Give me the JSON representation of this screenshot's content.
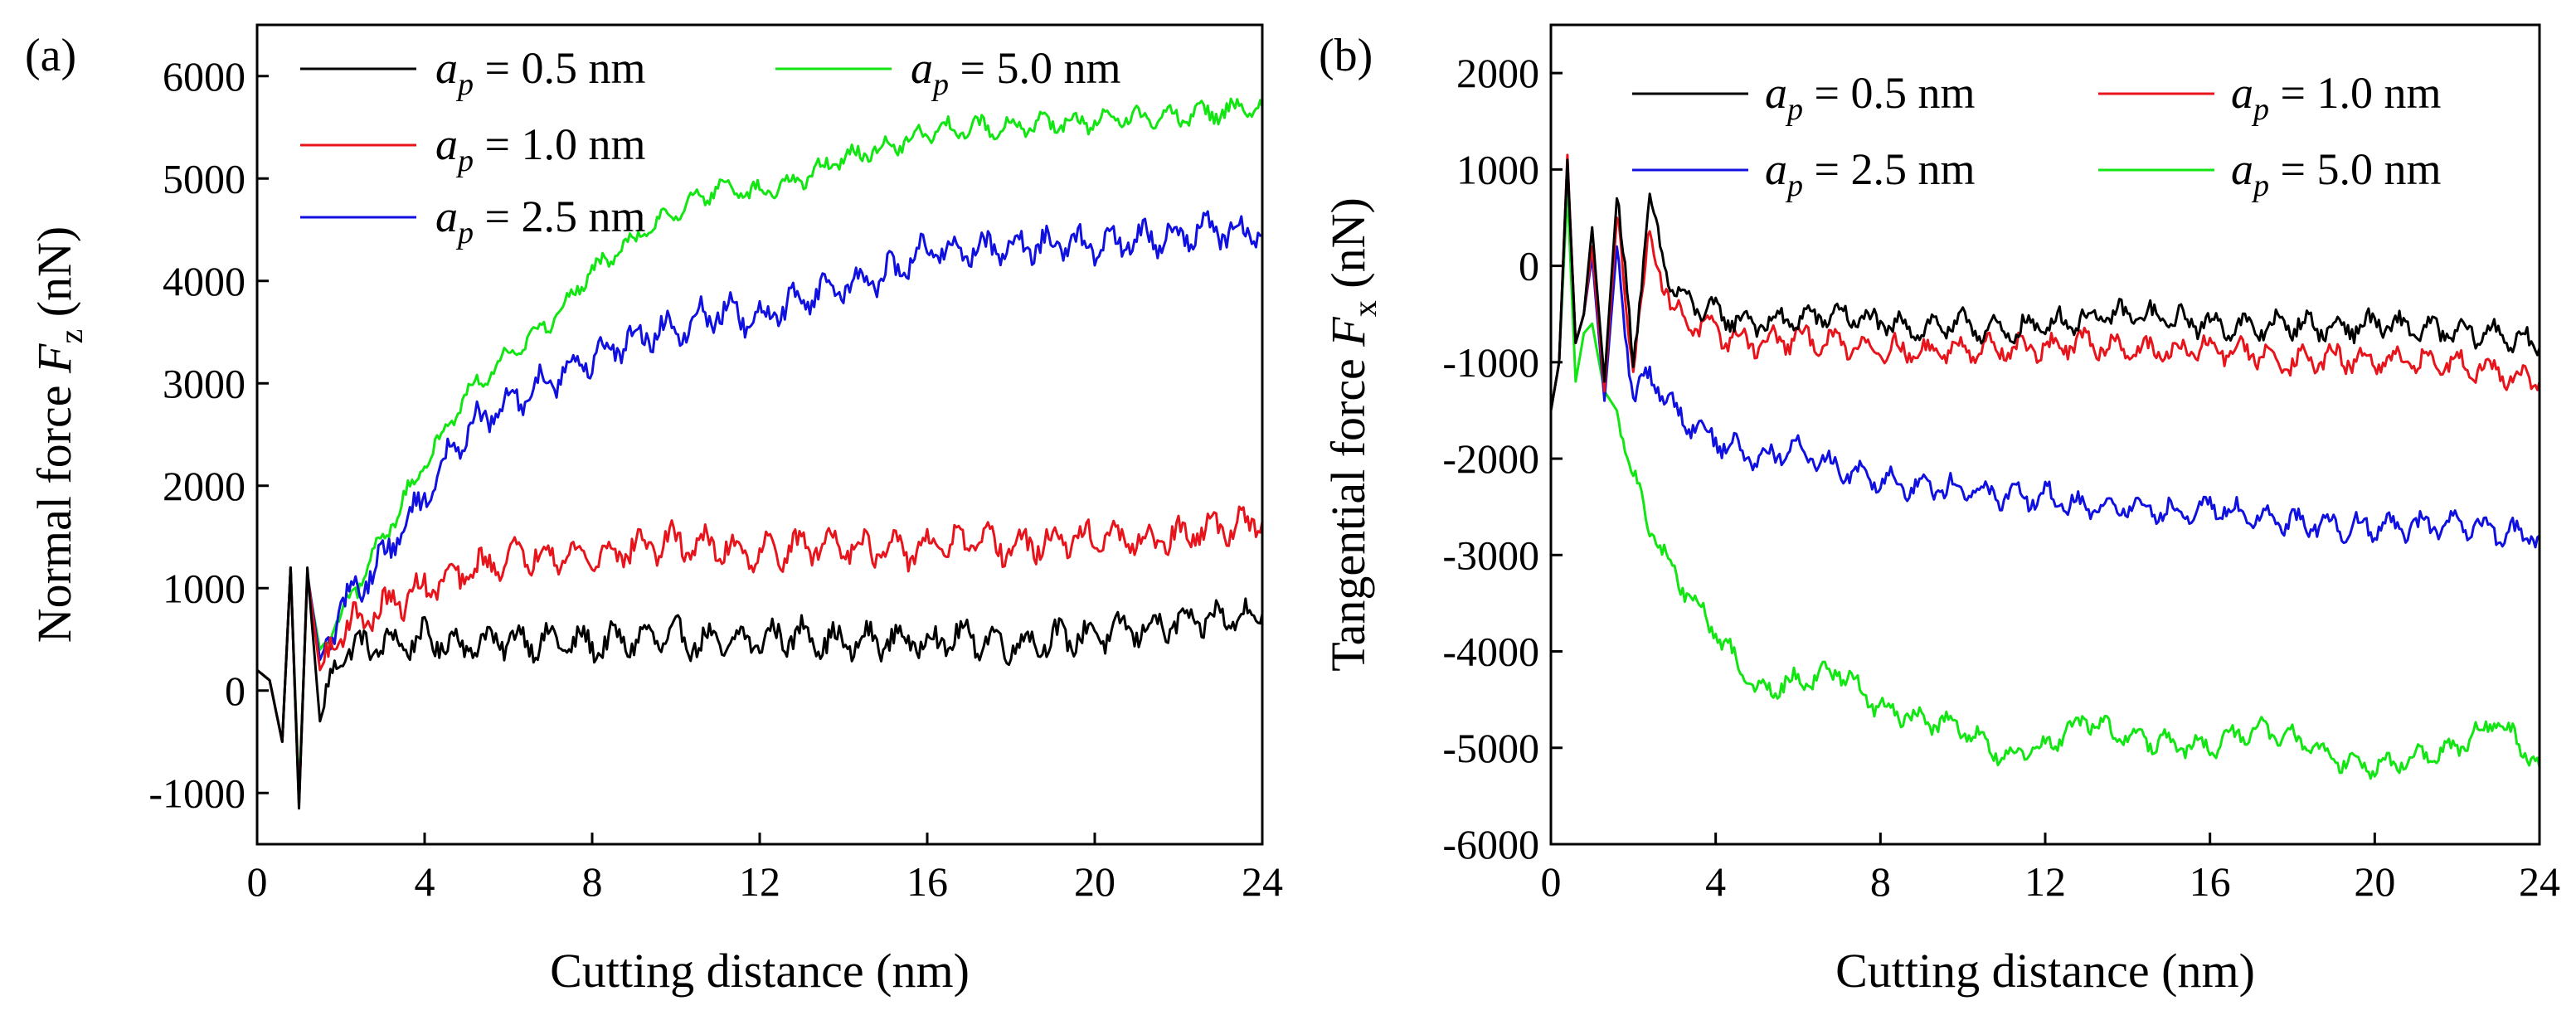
{
  "figure": {
    "panels": [
      {
        "label": "(a)",
        "xlabel": "Cutting distance (nm)",
        "ylabel_main": "Normal force ",
        "ylabel_sym": "F",
        "ylabel_sub": "z",
        "ylabel_unit": " (nN)"
      },
      {
        "label": "(b)",
        "xlabel": "Cutting distance (nm)",
        "ylabel_main": "Tangential force ",
        "ylabel_sym": "F",
        "ylabel_sub": "x",
        "ylabel_unit": " (nN)"
      }
    ],
    "legend_symbol": "a",
    "legend_sub": "p",
    "legend_values": [
      " = 0.5 nm",
      " = 1.0 nm",
      " = 2.5 nm",
      " = 5.0 nm"
    ],
    "colors": {
      "0.5": "#000000",
      "1.0": "#e8141c",
      "2.5": "#1010e0",
      "5.0": "#12e612"
    }
  },
  "chart_data": [
    {
      "type": "line",
      "title": "",
      "xlabel": "Cutting distance (nm)",
      "ylabel": "Normal force F_z (nN)",
      "xlim": [
        0,
        24
      ],
      "ylim": [
        -1500,
        6500
      ],
      "xticks": [
        "0",
        "4",
        "8",
        "12",
        "16",
        "20",
        "24"
      ],
      "yticks": [
        "-1000",
        "0",
        "1000",
        "2000",
        "3000",
        "4000",
        "5000",
        "6000"
      ],
      "legend": "top-left",
      "series": [
        {
          "name": "a_p = 0.5 nm",
          "color": "#000000",
          "x": [
            0,
            0.3,
            0.6,
            0.8,
            1.0,
            1.2,
            1.5,
            2,
            3,
            4,
            5,
            6,
            7,
            8,
            9,
            10,
            11,
            12,
            13,
            14,
            15,
            16,
            17,
            18,
            19,
            20,
            21,
            22,
            23,
            24
          ],
          "y": [
            200,
            100,
            -500,
            1200,
            -1150,
            1200,
            -300,
            400,
            450,
            500,
            450,
            500,
            480,
            450,
            500,
            520,
            450,
            500,
            550,
            450,
            500,
            480,
            520,
            450,
            500,
            550,
            600,
            650,
            700,
            750
          ]
        },
        {
          "name": "a_p = 1.0 nm",
          "color": "#e8141c",
          "x": [
            0,
            0.3,
            0.6,
            0.8,
            1.0,
            1.2,
            1.5,
            2,
            3,
            4,
            5,
            6,
            7,
            8,
            9,
            10,
            11,
            12,
            13,
            14,
            15,
            16,
            17,
            18,
            19,
            20,
            21,
            22,
            23,
            24
          ],
          "y": [
            200,
            100,
            -500,
            1200,
            -1100,
            1150,
            200,
            600,
            800,
            1000,
            1150,
            1300,
            1350,
            1300,
            1400,
            1450,
            1400,
            1350,
            1400,
            1450,
            1350,
            1400,
            1450,
            1400,
            1450,
            1500,
            1450,
            1500,
            1600,
            1650
          ]
        },
        {
          "name": "a_p = 2.5 nm",
          "color": "#1010e0",
          "x": [
            0,
            0.3,
            0.6,
            0.8,
            1.0,
            1.2,
            1.5,
            2,
            3,
            4,
            5,
            6,
            7,
            8,
            9,
            10,
            11,
            12,
            13,
            14,
            15,
            16,
            17,
            18,
            19,
            20,
            21,
            22,
            23,
            24
          ],
          "y": [
            200,
            100,
            -500,
            1200,
            -1100,
            1150,
            300,
            800,
            1300,
            1900,
            2550,
            2800,
            3050,
            3250,
            3450,
            3550,
            3700,
            3600,
            3850,
            3950,
            4050,
            4300,
            4300,
            4350,
            4350,
            4350,
            4400,
            4450,
            4500,
            4450
          ]
        },
        {
          "name": "a_p = 5.0 nm",
          "color": "#12e612",
          "x": [
            0,
            0.3,
            0.6,
            0.8,
            1.0,
            1.2,
            1.5,
            2,
            3,
            4,
            5,
            6,
            7,
            8,
            9,
            10,
            11,
            12,
            13,
            14,
            15,
            16,
            17,
            18,
            19,
            20,
            21,
            22,
            23,
            24
          ],
          "y": [
            200,
            100,
            -500,
            1200,
            -1000,
            1100,
            400,
            700,
            1500,
            2200,
            2900,
            3300,
            3600,
            4100,
            4400,
            4700,
            4900,
            4850,
            5000,
            5200,
            5300,
            5450,
            5500,
            5500,
            5550,
            5550,
            5600,
            5600,
            5650,
            5700
          ]
        }
      ]
    },
    {
      "type": "line",
      "title": "",
      "xlabel": "Cutting distance (nm)",
      "ylabel": "Tangential force F_x (nN)",
      "xlim": [
        0,
        24
      ],
      "ylim": [
        -6000,
        2500
      ],
      "xticks": [
        "0",
        "4",
        "8",
        "12",
        "16",
        "20",
        "24"
      ],
      "yticks": [
        "-6000",
        "-5000",
        "-4000",
        "-3000",
        "-2000",
        "-1000",
        "0",
        "1000",
        "2000"
      ],
      "legend": "top",
      "series": [
        {
          "name": "a_p = 0.5 nm",
          "color": "#000000",
          "x": [
            0,
            0.2,
            0.4,
            0.6,
            0.8,
            1.0,
            1.3,
            1.6,
            2.0,
            2.4,
            3,
            4,
            5,
            6,
            7,
            8,
            9,
            10,
            11,
            12,
            13,
            14,
            15,
            16,
            17,
            18,
            19,
            20,
            21,
            22,
            23,
            24
          ],
          "y": [
            -1500,
            -1000,
            1100,
            -800,
            -500,
            400,
            -1200,
            700,
            -900,
            600,
            -300,
            -500,
            -600,
            -550,
            -500,
            -600,
            -650,
            -600,
            -700,
            -600,
            -550,
            -500,
            -550,
            -600,
            -650,
            -600,
            -650,
            -600,
            -650,
            -700,
            -700,
            -850
          ]
        },
        {
          "name": "a_p = 1.0 nm",
          "color": "#e8141c",
          "x": [
            0,
            0.2,
            0.4,
            0.6,
            0.8,
            1.0,
            1.3,
            1.6,
            2.0,
            2.4,
            3,
            4,
            5,
            6,
            7,
            8,
            9,
            10,
            11,
            12,
            13,
            14,
            15,
            16,
            17,
            18,
            19,
            20,
            21,
            22,
            23,
            24
          ],
          "y": [
            -1500,
            -1000,
            1150,
            -800,
            -500,
            200,
            -1300,
            500,
            -1000,
            300,
            -500,
            -700,
            -800,
            -750,
            -800,
            -850,
            -900,
            -850,
            -850,
            -850,
            -800,
            -850,
            -900,
            -850,
            -900,
            -1000,
            -950,
            -1000,
            -1000,
            -1000,
            -1100,
            -1200
          ]
        },
        {
          "name": "a_p = 2.5 nm",
          "color": "#1010e0",
          "x": [
            0,
            0.2,
            0.4,
            0.6,
            0.8,
            1.0,
            1.3,
            1.6,
            2.0,
            2.4,
            3,
            4,
            5,
            6,
            7,
            8,
            9,
            10,
            11,
            12,
            13,
            14,
            15,
            16,
            17,
            18,
            19,
            20,
            21,
            22,
            23,
            24
          ],
          "y": [
            -1500,
            -1000,
            1100,
            -800,
            -500,
            100,
            -1400,
            200,
            -1400,
            -1100,
            -1500,
            -1800,
            -2000,
            -1900,
            -2100,
            -2200,
            -2300,
            -2300,
            -2400,
            -2400,
            -2500,
            -2500,
            -2550,
            -2500,
            -2600,
            -2650,
            -2700,
            -2700,
            -2700,
            -2700,
            -2750,
            -2800
          ]
        },
        {
          "name": "a_p = 5.0 nm",
          "color": "#12e612",
          "x": [
            0,
            0.2,
            0.4,
            0.6,
            0.8,
            1.0,
            1.3,
            1.6,
            2.0,
            2.4,
            3,
            4,
            5,
            6,
            7,
            8,
            9,
            10,
            11,
            12,
            13,
            14,
            15,
            16,
            17,
            18,
            19,
            20,
            21,
            22,
            23,
            24
          ],
          "y": [
            -1500,
            -1000,
            800,
            -1200,
            -700,
            -600,
            -1300,
            -1500,
            -2200,
            -2700,
            -3200,
            -3800,
            -4400,
            -4300,
            -4200,
            -4600,
            -4700,
            -4800,
            -5100,
            -5000,
            -4700,
            -4900,
            -4950,
            -5000,
            -4800,
            -4900,
            -5100,
            -5200,
            -5100,
            -5000,
            -4700,
            -5200
          ]
        }
      ]
    }
  ]
}
